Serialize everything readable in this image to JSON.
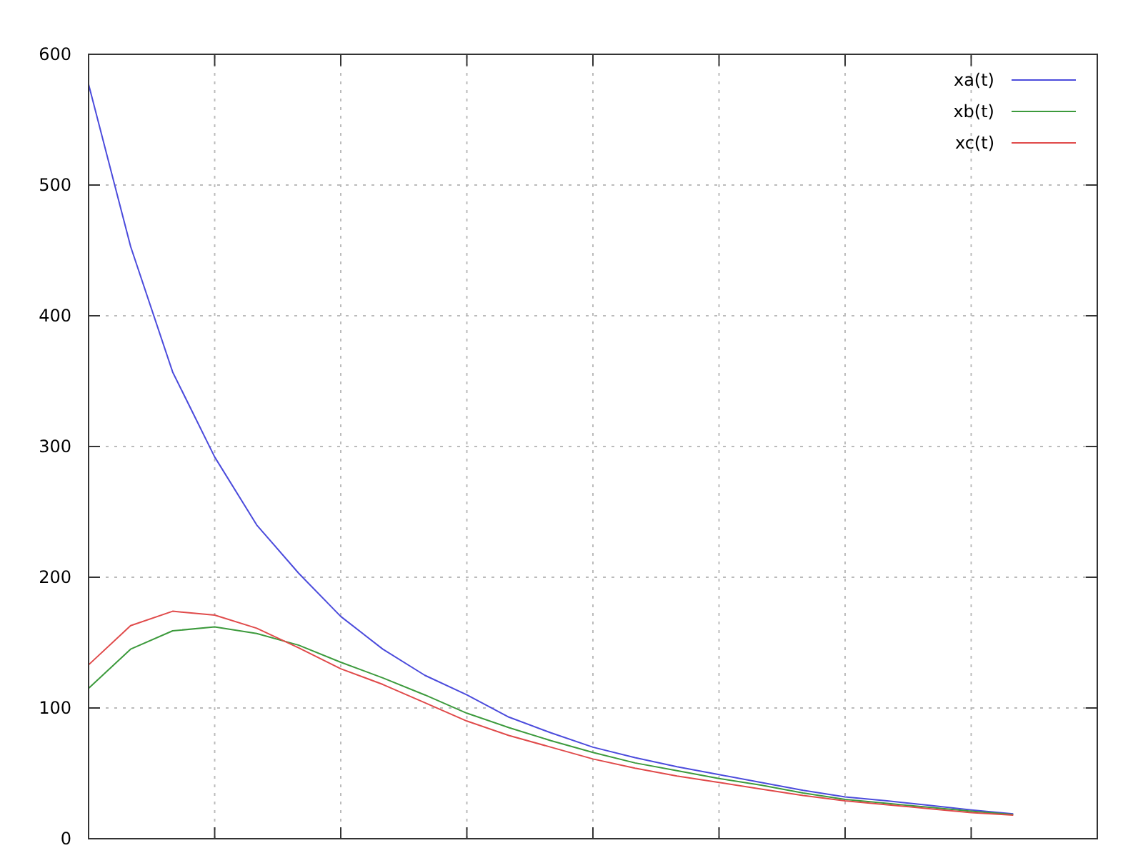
{
  "chart_data": {
    "type": "line",
    "categories": [
      null,
      null,
      null,
      null,
      null,
      null,
      null,
      null,
      null,
      null,
      null,
      null,
      null,
      null,
      null,
      null,
      null,
      null,
      null,
      null,
      null,
      null,
      null,
      null,
      null
    ],
    "ylim": [
      0,
      600
    ],
    "yticks": [
      0,
      100,
      200,
      300,
      400,
      500,
      600
    ],
    "tick_labels": "y",
    "grid": true,
    "legend": "top right",
    "line_style": "solid",
    "marker": "none",
    "series": [
      {
        "name": "xa(t)",
        "color": "#4b4bdc",
        "values": [
          577,
          453,
          357,
          292,
          240,
          203,
          170,
          145,
          125,
          110,
          93,
          81,
          70,
          62,
          55,
          49,
          43,
          37,
          32,
          29,
          25.5,
          22,
          19,
          null,
          null
        ]
      },
      {
        "name": "xb(t)",
        "color": "#3c9a3c",
        "values": [
          115,
          145,
          159,
          162,
          157,
          148,
          135,
          123,
          110,
          96,
          85,
          75,
          66,
          58,
          52,
          46,
          41,
          35,
          30,
          27,
          24,
          21,
          18.5,
          null,
          null
        ]
      },
      {
        "name": "xc(t)",
        "color": "#e04a4a",
        "values": [
          133,
          163,
          174,
          171,
          161,
          146,
          130,
          118,
          104,
          90,
          79,
          70,
          61,
          54,
          48,
          43,
          38,
          33,
          29,
          26,
          23,
          20,
          18,
          null,
          null
        ]
      }
    ]
  }
}
